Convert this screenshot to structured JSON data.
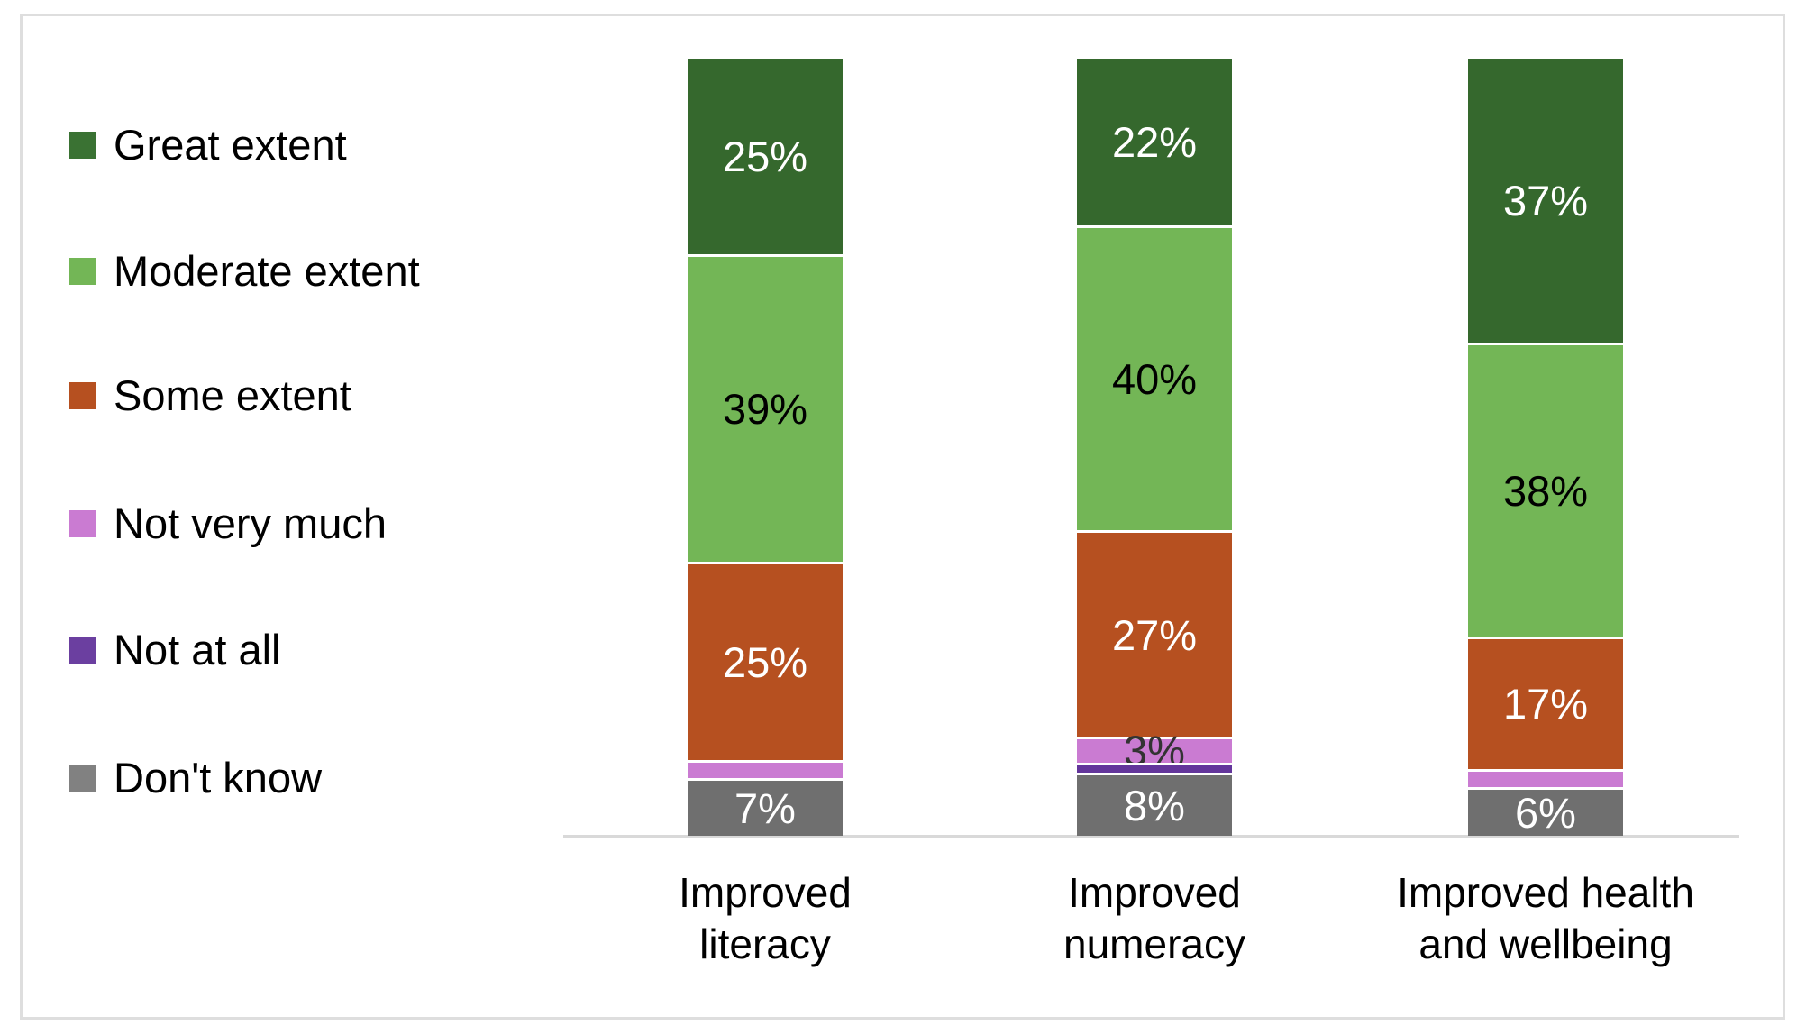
{
  "chart_data": {
    "type": "bar",
    "stacked": true,
    "orientation": "vertical",
    "unit": "%",
    "legend_position": "left",
    "grid": false,
    "ylim": [
      0,
      100
    ],
    "categories": [
      "Improved\nliteracy",
      "Improved\nnumeracy",
      "Improved health\nand wellbeing"
    ],
    "series": [
      {
        "name": "Great extent",
        "color": "#35682d",
        "legend_color": "#3a7233",
        "label_color": "#ffffff",
        "values": [
          25,
          22,
          37
        ],
        "labels": [
          "25%",
          "22%",
          "37%"
        ]
      },
      {
        "name": "Moderate extent",
        "color": "#73b656",
        "legend_color": "#73b656",
        "label_color": "#000000",
        "values": [
          39,
          40,
          38
        ],
        "labels": [
          "39%",
          "40%",
          "38%"
        ]
      },
      {
        "name": "Some extent",
        "color": "#b65020",
        "legend_color": "#b65020",
        "label_color": "#ffffff",
        "values": [
          25,
          27,
          17
        ],
        "labels": [
          "25%",
          "27%",
          "17%"
        ]
      },
      {
        "name": "Not very much",
        "color": "#ca7bd2",
        "legend_color": "#ca7bd2",
        "label_color": "#333333",
        "values": [
          2,
          3,
          2
        ],
        "labels": [
          "",
          "3%",
          ""
        ]
      },
      {
        "name": "Not at all",
        "color": "#63359b",
        "legend_color": "#6b3fa0",
        "label_color": "#ffffff",
        "values": [
          0,
          1,
          0
        ],
        "labels": [
          "",
          "",
          ""
        ]
      },
      {
        "name": "Don't know",
        "color": "#6f6f6f",
        "legend_color": "#818181",
        "label_color": "#ffffff",
        "values": [
          7,
          8,
          6
        ],
        "labels": [
          "7%",
          "8%",
          "6%"
        ]
      }
    ],
    "colors": {
      "separator": "#ffffff",
      "axis_line": "#d9d9d9",
      "frame_border": "#dedede"
    }
  },
  "layout_note_values_are_percent": "Percentages shown as printed on the chart; thin pink/purple slivers without printed labels are estimated from pixel heights."
}
